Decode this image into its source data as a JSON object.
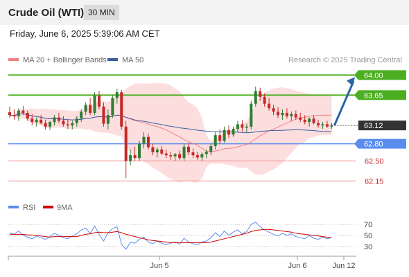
{
  "header": {
    "title": "Crude Oil (WTI)",
    "timeframe": "30 MIN"
  },
  "timestamp": "Friday, June 6, 2025 5:39:06 AM CET",
  "legend": {
    "ma20": "MA 20 + Bollinger Bands",
    "ma50": "MA 50",
    "credit": "Research © 2025 Trading Central"
  },
  "rsi_legend": {
    "rsi": "RSI",
    "ma9": "9MA"
  },
  "colors": {
    "up": "#2e7d32",
    "down": "#c62828",
    "ma20": "#f08080",
    "ma50": "#3a5fa0",
    "band": "#fcdede",
    "target": "#4caf22",
    "pivot": "#5b8def",
    "support": "#f4a0a0",
    "arrow": "#2d63a8",
    "current": "#333333"
  },
  "chart_data": [
    {
      "type": "candlestick",
      "title": "Crude Oil (WTI)",
      "timeframe": "30 MIN",
      "x_ticks": [
        "Jun 5",
        "Jun 6",
        "Jun 12"
      ],
      "ylim": [
        61.9,
        64.15
      ],
      "current_price": "63.12",
      "levels": [
        {
          "value": 64.0,
          "label": "64.00",
          "kind": "target"
        },
        {
          "value": 63.65,
          "label": "63.65",
          "kind": "target"
        },
        {
          "value": 62.8,
          "label": "62.80",
          "kind": "pivot"
        },
        {
          "value": 62.5,
          "label": "62.50",
          "kind": "support"
        },
        {
          "value": 62.15,
          "label": "62.15",
          "kind": "support"
        }
      ],
      "candles": [
        [
          63.35,
          63.45,
          63.25,
          63.3
        ],
        [
          63.3,
          63.4,
          63.22,
          63.28
        ],
        [
          63.28,
          63.42,
          63.2,
          63.38
        ],
        [
          63.38,
          63.46,
          63.3,
          63.34
        ],
        [
          63.34,
          63.38,
          63.2,
          63.24
        ],
        [
          63.24,
          63.32,
          63.12,
          63.18
        ],
        [
          63.18,
          63.26,
          63.1,
          63.22
        ],
        [
          63.22,
          63.3,
          63.14,
          63.16
        ],
        [
          63.16,
          63.22,
          63.05,
          63.1
        ],
        [
          63.1,
          63.2,
          63.04,
          63.18
        ],
        [
          63.18,
          63.3,
          63.12,
          63.26
        ],
        [
          63.26,
          63.34,
          63.16,
          63.2
        ],
        [
          63.2,
          63.28,
          63.1,
          63.14
        ],
        [
          63.14,
          63.22,
          63.06,
          63.12
        ],
        [
          63.12,
          63.2,
          63.05,
          63.16
        ],
        [
          63.16,
          63.28,
          63.1,
          63.24
        ],
        [
          63.24,
          63.4,
          63.18,
          63.36
        ],
        [
          63.36,
          63.52,
          63.3,
          63.48
        ],
        [
          63.48,
          63.6,
          63.3,
          63.34
        ],
        [
          63.34,
          63.7,
          63.3,
          63.64
        ],
        [
          63.64,
          63.72,
          63.4,
          63.45
        ],
        [
          63.45,
          63.52,
          63.1,
          63.15
        ],
        [
          63.15,
          63.4,
          63.05,
          63.3
        ],
        [
          63.3,
          63.65,
          63.25,
          63.6
        ],
        [
          63.6,
          63.76,
          63.5,
          63.7
        ],
        [
          63.7,
          63.74,
          63.05,
          63.1
        ],
        [
          63.1,
          63.2,
          62.2,
          62.5
        ],
        [
          62.5,
          62.7,
          62.42,
          62.6
        ],
        [
          62.6,
          62.75,
          62.5,
          62.55
        ],
        [
          62.55,
          62.85,
          62.5,
          62.8
        ],
        [
          62.8,
          63.0,
          62.72,
          62.92
        ],
        [
          62.92,
          62.98,
          62.7,
          62.74
        ],
        [
          62.74,
          62.8,
          62.6,
          62.65
        ],
        [
          62.65,
          62.74,
          62.56,
          62.7
        ],
        [
          62.7,
          62.76,
          62.6,
          62.63
        ],
        [
          62.63,
          62.7,
          62.55,
          62.6
        ],
        [
          62.6,
          62.66,
          62.52,
          62.58
        ],
        [
          62.58,
          62.64,
          62.5,
          62.62
        ],
        [
          62.62,
          62.68,
          62.52,
          62.55
        ],
        [
          62.55,
          62.8,
          62.5,
          62.75
        ],
        [
          62.75,
          62.82,
          62.6,
          62.65
        ],
        [
          62.65,
          62.72,
          62.55,
          62.6
        ],
        [
          62.6,
          62.66,
          62.52,
          62.56
        ],
        [
          62.56,
          62.65,
          62.5,
          62.62
        ],
        [
          62.62,
          62.7,
          62.55,
          62.66
        ],
        [
          62.66,
          62.8,
          62.6,
          62.76
        ],
        [
          62.76,
          63.0,
          62.7,
          62.95
        ],
        [
          62.95,
          63.05,
          62.8,
          62.85
        ],
        [
          62.85,
          63.1,
          62.82,
          63.04
        ],
        [
          63.04,
          63.12,
          62.9,
          62.96
        ],
        [
          62.96,
          63.1,
          62.92,
          63.06
        ],
        [
          63.06,
          63.2,
          63.0,
          63.14
        ],
        [
          63.14,
          63.22,
          63.02,
          63.08
        ],
        [
          63.08,
          63.15,
          63.0,
          63.1
        ],
        [
          63.1,
          63.55,
          63.05,
          63.5
        ],
        [
          63.5,
          63.8,
          63.45,
          63.72
        ],
        [
          63.72,
          63.78,
          63.55,
          63.62
        ],
        [
          63.62,
          63.68,
          63.45,
          63.5
        ],
        [
          63.5,
          63.6,
          63.38,
          63.42
        ],
        [
          63.42,
          63.48,
          63.3,
          63.36
        ],
        [
          63.36,
          63.44,
          63.25,
          63.3
        ],
        [
          63.3,
          63.4,
          63.22,
          63.34
        ],
        [
          63.34,
          63.42,
          63.24,
          63.28
        ],
        [
          63.28,
          63.36,
          63.2,
          63.32
        ],
        [
          63.32,
          63.38,
          63.22,
          63.26
        ],
        [
          63.26,
          63.34,
          63.18,
          63.22
        ],
        [
          63.22,
          63.3,
          63.14,
          63.18
        ],
        [
          63.18,
          63.26,
          63.1,
          63.24
        ],
        [
          63.24,
          63.3,
          63.14,
          63.16
        ],
        [
          63.16,
          63.22,
          63.08,
          63.12
        ],
        [
          63.12,
          63.18,
          63.06,
          63.14
        ],
        [
          63.14,
          63.2,
          63.08,
          63.1
        ],
        [
          63.1,
          63.16,
          63.06,
          63.12
        ]
      ],
      "rsi": {
        "ticks": [
          "70",
          "50",
          "30"
        ],
        "ylim": [
          20,
          80
        ],
        "rsi_values": [
          55,
          52,
          58,
          50,
          47,
          44,
          49,
          46,
          43,
          48,
          54,
          50,
          46,
          44,
          49,
          53,
          60,
          63,
          54,
          67,
          52,
          40,
          55,
          62,
          66,
          34,
          25,
          38,
          36,
          43,
          47,
          38,
          35,
          40,
          36,
          33,
          36,
          38,
          34,
          45,
          38,
          35,
          33,
          38,
          40,
          46,
          55,
          48,
          58,
          50,
          56,
          60,
          53,
          57,
          70,
          74,
          66,
          60,
          56,
          52,
          49,
          54,
          50,
          53,
          48,
          46,
          44,
          50,
          45,
          43,
          47,
          44,
          46
        ],
        "ma9_values": [
          52,
          52,
          52,
          52,
          51,
          51,
          50,
          49,
          48,
          47,
          48,
          48,
          48,
          48,
          48,
          48,
          50,
          52,
          53,
          55,
          56,
          55,
          55,
          56,
          57,
          55,
          52,
          50,
          48,
          46,
          44,
          42,
          41,
          40,
          39,
          38,
          37,
          37,
          37,
          37,
          37,
          37,
          37,
          37,
          37,
          38,
          40,
          42,
          44,
          46,
          48,
          50,
          52,
          54,
          57,
          59,
          60,
          61,
          61,
          60,
          59,
          58,
          57,
          56,
          54,
          53,
          52,
          51,
          50,
          49,
          48,
          47,
          46
        ]
      }
    }
  ]
}
